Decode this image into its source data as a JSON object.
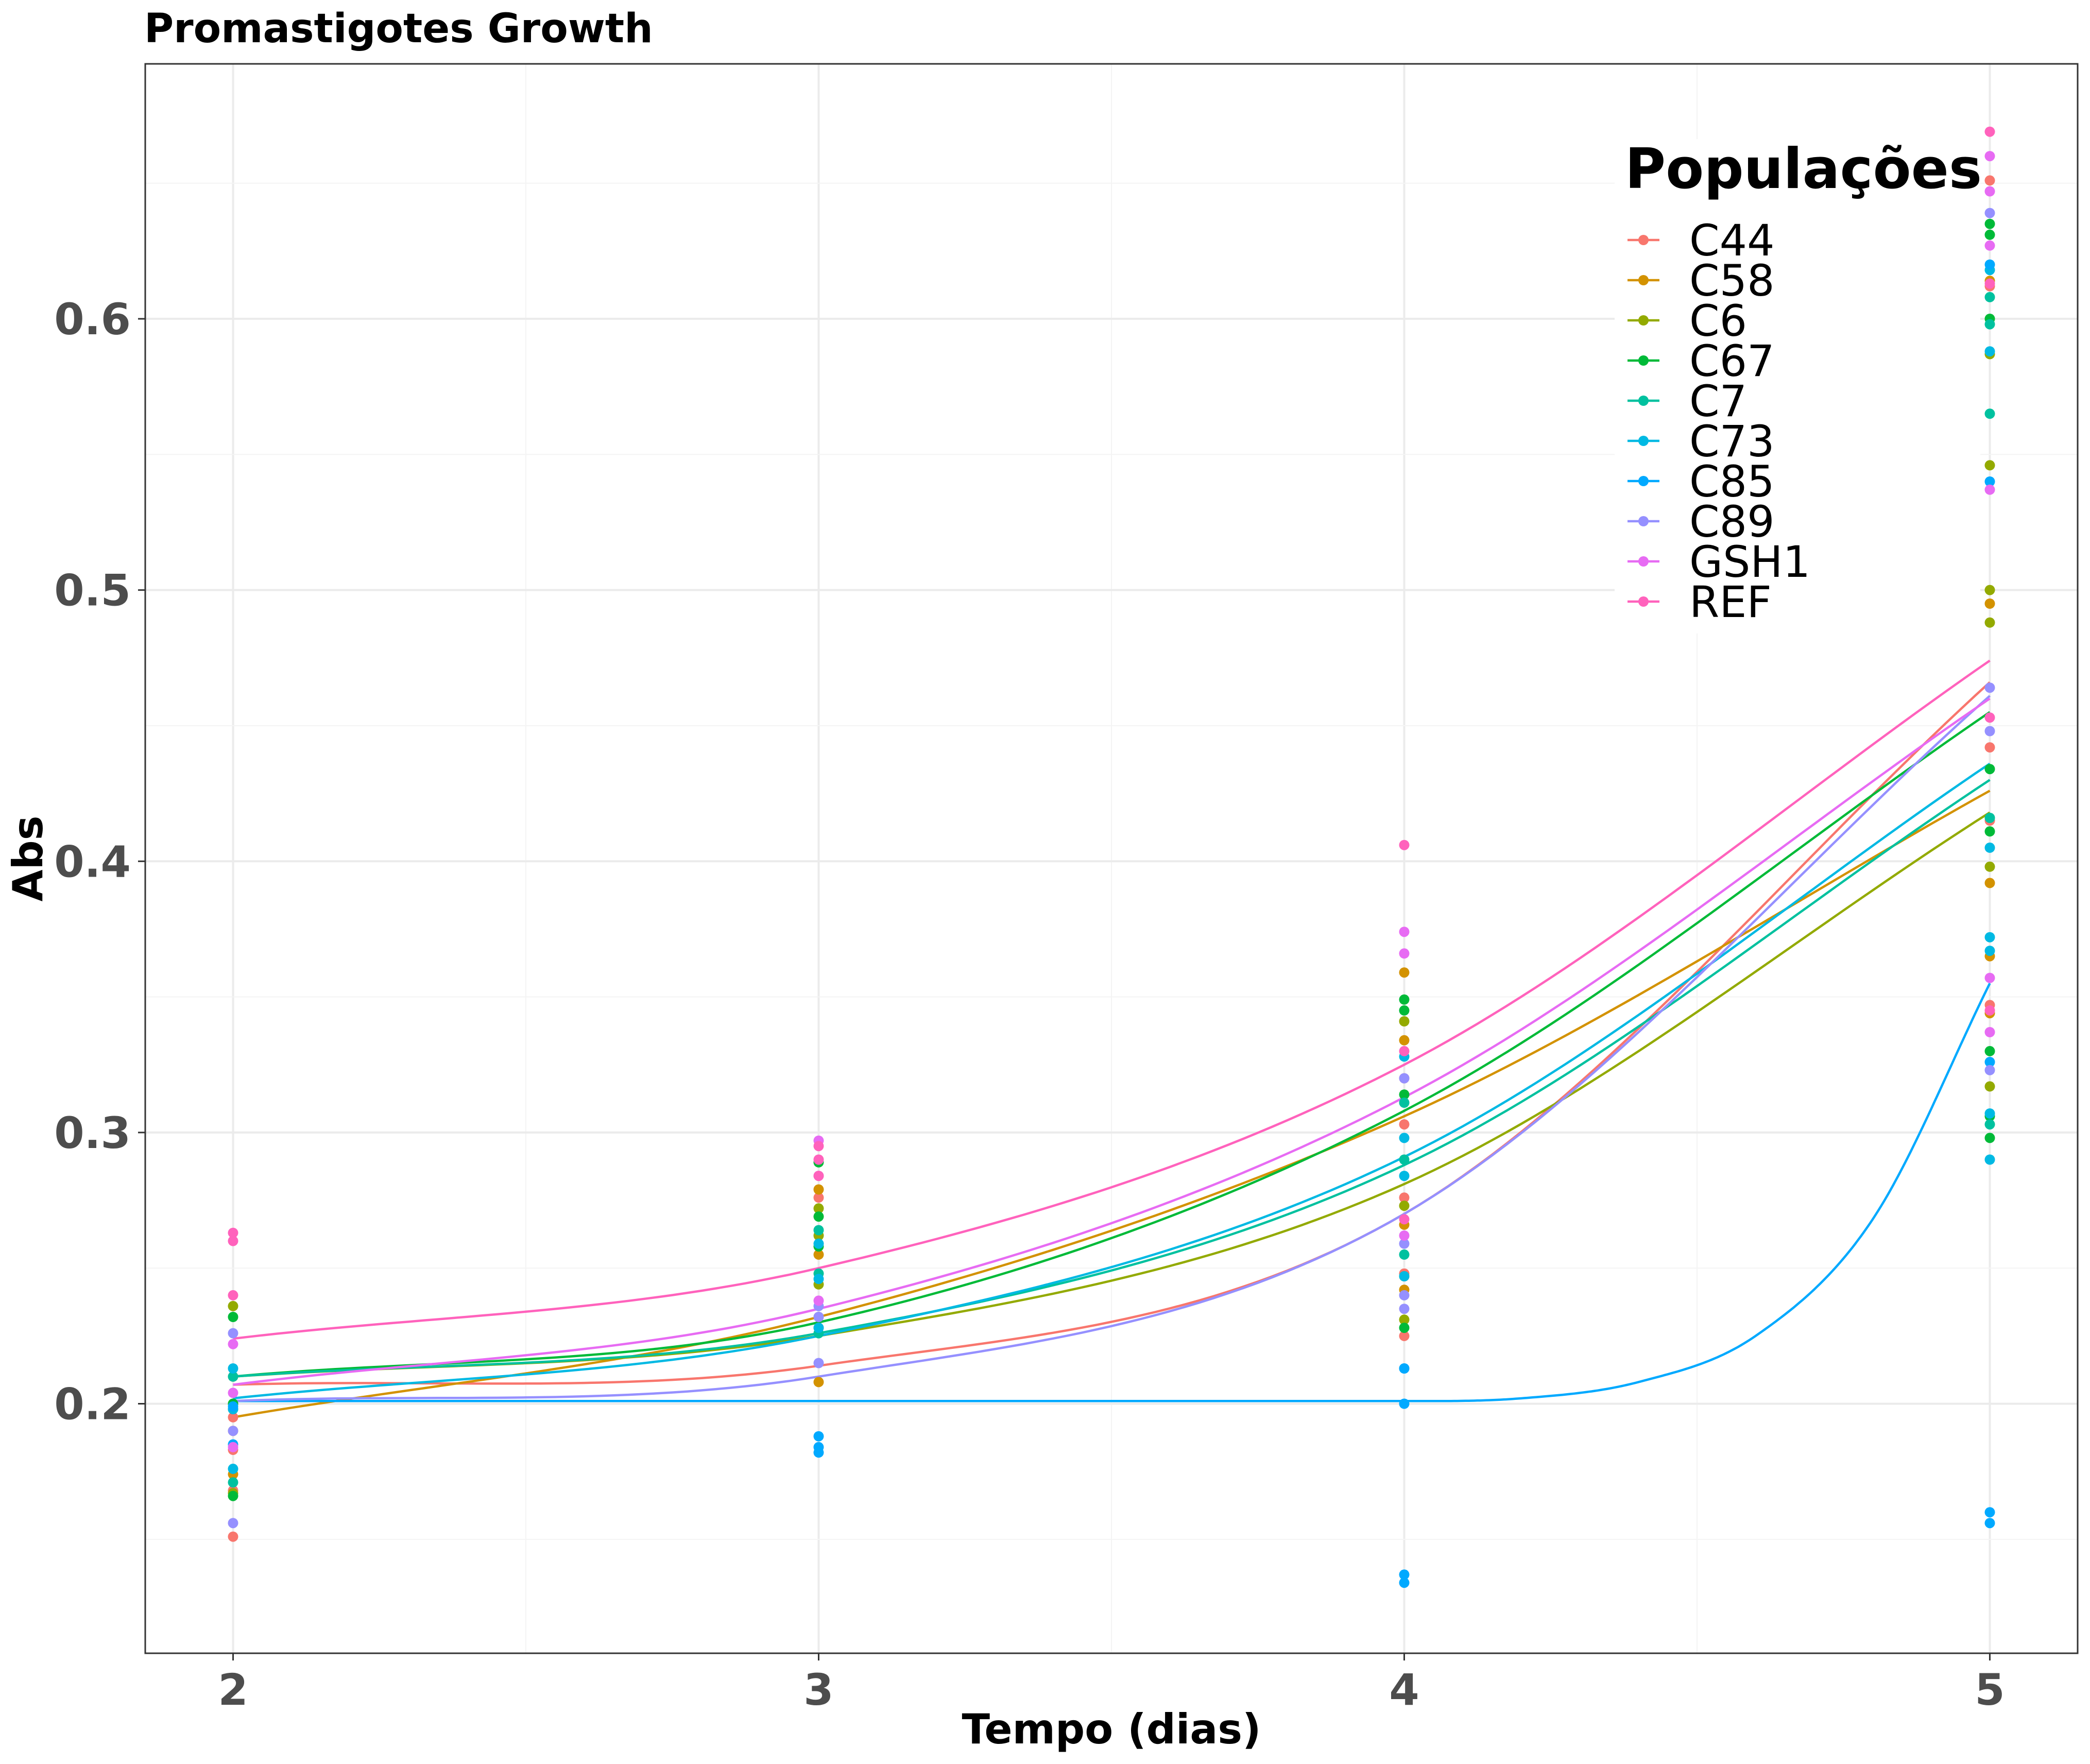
{
  "chart_data": {
    "type": "scatter",
    "title": "Promastigotes Growth",
    "xlabel": "Tempo (dias)",
    "ylabel": "Abs",
    "x_ticks": [
      2,
      3,
      4,
      5
    ],
    "y_ticks": [
      0.2,
      0.3,
      0.4,
      0.5,
      0.6
    ],
    "y_tick_labels": [
      "0.2",
      "0.3",
      "0.4",
      "0.5",
      "0.6"
    ],
    "xlim": [
      1.85,
      5.15
    ],
    "ylim": [
      0.108,
      0.694
    ],
    "grid": true,
    "legend": {
      "title": "Populações",
      "position": "top-right"
    },
    "series": [
      {
        "name": "C44",
        "color": "#F8766D",
        "curve": [
          [
            2,
            0.207
          ],
          [
            3,
            0.214
          ],
          [
            4,
            0.27
          ],
          [
            5,
            0.466
          ]
        ],
        "points": [
          [
            2,
            0.151
          ],
          [
            2,
            0.168
          ],
          [
            2,
            0.183
          ],
          [
            2,
            0.195
          ],
          [
            2,
            0.21
          ],
          [
            3,
            0.228
          ],
          [
            3,
            0.232
          ],
          [
            3,
            0.276
          ],
          [
            4,
            0.225
          ],
          [
            4,
            0.248
          ],
          [
            4,
            0.276
          ],
          [
            4,
            0.303
          ],
          [
            4,
            0.32
          ],
          [
            5,
            0.347
          ],
          [
            5,
            0.415
          ],
          [
            5,
            0.442
          ],
          [
            5,
            0.612
          ],
          [
            5,
            0.651
          ]
        ]
      },
      {
        "name": "C58",
        "color": "#D39200",
        "curve": [
          [
            2,
            0.195
          ],
          [
            3,
            0.232
          ],
          [
            4,
            0.306
          ],
          [
            5,
            0.426
          ]
        ],
        "points": [
          [
            2,
            0.174
          ],
          [
            2,
            0.19
          ],
          [
            2,
            0.2
          ],
          [
            3,
            0.208
          ],
          [
            3,
            0.255
          ],
          [
            3,
            0.279
          ],
          [
            4,
            0.242
          ],
          [
            4,
            0.266
          ],
          [
            4,
            0.334
          ],
          [
            4,
            0.359
          ],
          [
            5,
            0.344
          ],
          [
            5,
            0.365
          ],
          [
            5,
            0.392
          ],
          [
            5,
            0.495
          ],
          [
            5,
            0.614
          ]
        ]
      },
      {
        "name": "C6",
        "color": "#93AA00",
        "curve": [
          [
            2,
            0.21
          ],
          [
            3,
            0.225
          ],
          [
            4,
            0.281
          ],
          [
            5,
            0.418
          ]
        ],
        "points": [
          [
            2,
            0.167
          ],
          [
            2,
            0.198
          ],
          [
            2,
            0.236
          ],
          [
            3,
            0.244
          ],
          [
            3,
            0.262
          ],
          [
            3,
            0.272
          ],
          [
            4,
            0.231
          ],
          [
            4,
            0.247
          ],
          [
            4,
            0.273
          ],
          [
            4,
            0.341
          ],
          [
            5,
            0.317
          ],
          [
            5,
            0.398
          ],
          [
            5,
            0.488
          ],
          [
            5,
            0.5
          ],
          [
            5,
            0.546
          ],
          [
            5,
            0.587
          ]
        ]
      },
      {
        "name": "C67",
        "color": "#00BA38",
        "curve": [
          [
            2,
            0.21
          ],
          [
            3,
            0.23
          ],
          [
            4,
            0.308
          ],
          [
            5,
            0.455
          ]
        ],
        "points": [
          [
            2,
            0.166
          ],
          [
            2,
            0.2
          ],
          [
            2,
            0.232
          ],
          [
            3,
            0.258
          ],
          [
            3,
            0.269
          ],
          [
            3,
            0.289
          ],
          [
            4,
            0.228
          ],
          [
            4,
            0.314
          ],
          [
            4,
            0.345
          ],
          [
            4,
            0.349
          ],
          [
            5,
            0.298
          ],
          [
            5,
            0.306
          ],
          [
            5,
            0.33
          ],
          [
            5,
            0.411
          ],
          [
            5,
            0.434
          ],
          [
            5,
            0.6
          ],
          [
            5,
            0.631
          ],
          [
            5,
            0.635
          ]
        ]
      },
      {
        "name": "C7",
        "color": "#00C19F",
        "curve": [
          [
            2,
            0.21
          ],
          [
            3,
            0.226
          ],
          [
            4,
            0.288
          ],
          [
            5,
            0.43
          ]
        ],
        "points": [
          [
            2,
            0.171
          ],
          [
            2,
            0.198
          ],
          [
            2,
            0.21
          ],
          [
            3,
            0.226
          ],
          [
            3,
            0.248
          ],
          [
            3,
            0.264
          ],
          [
            4,
            0.255
          ],
          [
            4,
            0.29
          ],
          [
            4,
            0.311
          ],
          [
            5,
            0.303
          ],
          [
            5,
            0.416
          ],
          [
            5,
            0.565
          ],
          [
            5,
            0.598
          ],
          [
            5,
            0.608
          ]
        ]
      },
      {
        "name": "C73",
        "color": "#00B9E3",
        "curve": [
          [
            2,
            0.202
          ],
          [
            3,
            0.225
          ],
          [
            4,
            0.291
          ],
          [
            5,
            0.436
          ]
        ],
        "points": [
          [
            2,
            0.176
          ],
          [
            2,
            0.198
          ],
          [
            2,
            0.213
          ],
          [
            3,
            0.228
          ],
          [
            3,
            0.246
          ],
          [
            3,
            0.259
          ],
          [
            4,
            0.247
          ],
          [
            4,
            0.284
          ],
          [
            4,
            0.298
          ],
          [
            4,
            0.328
          ],
          [
            5,
            0.29
          ],
          [
            5,
            0.307
          ],
          [
            5,
            0.367
          ],
          [
            5,
            0.372
          ],
          [
            5,
            0.405
          ],
          [
            5,
            0.588
          ],
          [
            5,
            0.618
          ]
        ]
      },
      {
        "name": "C85",
        "color": "#00A9FF",
        "curve": [
          [
            2,
            0.201
          ],
          [
            3,
            0.201
          ],
          [
            4,
            0.201
          ],
          [
            4.2,
            0.202
          ],
          [
            4.4,
            0.208
          ],
          [
            4.6,
            0.225
          ],
          [
            4.8,
            0.268
          ],
          [
            5,
            0.355
          ]
        ],
        "points": [
          [
            2,
            0.185
          ],
          [
            2,
            0.199
          ],
          [
            3,
            0.182
          ],
          [
            3,
            0.184
          ],
          [
            3,
            0.188
          ],
          [
            4,
            0.134
          ],
          [
            4,
            0.137
          ],
          [
            4,
            0.2
          ],
          [
            4,
            0.213
          ],
          [
            4,
            0.213
          ],
          [
            5,
            0.156
          ],
          [
            5,
            0.16
          ],
          [
            5,
            0.326
          ],
          [
            5,
            0.54
          ],
          [
            5,
            0.62
          ]
        ]
      },
      {
        "name": "C89",
        "color": "#9590FF",
        "curve": [
          [
            2,
            0.201
          ],
          [
            3,
            0.21
          ],
          [
            4,
            0.27
          ],
          [
            5,
            0.461
          ]
        ],
        "points": [
          [
            2,
            0.156
          ],
          [
            2,
            0.19
          ],
          [
            2,
            0.226
          ],
          [
            3,
            0.215
          ],
          [
            3,
            0.232
          ],
          [
            3,
            0.236
          ],
          [
            4,
            0.235
          ],
          [
            4,
            0.24
          ],
          [
            4,
            0.259
          ],
          [
            4,
            0.32
          ],
          [
            5,
            0.323
          ],
          [
            5,
            0.448
          ],
          [
            5,
            0.464
          ],
          [
            5,
            0.639
          ]
        ]
      },
      {
        "name": "GSH1",
        "color": "#E76BF3",
        "curve": [
          [
            2,
            0.207
          ],
          [
            3,
            0.235
          ],
          [
            4,
            0.313
          ],
          [
            5,
            0.46
          ]
        ],
        "points": [
          [
            2,
            0.184
          ],
          [
            2,
            0.204
          ],
          [
            2,
            0.222
          ],
          [
            3,
            0.238
          ],
          [
            3,
            0.284
          ],
          [
            3,
            0.297
          ],
          [
            4,
            0.262
          ],
          [
            4,
            0.366
          ],
          [
            4,
            0.374
          ],
          [
            5,
            0.337
          ],
          [
            5,
            0.357
          ],
          [
            5,
            0.537
          ],
          [
            5,
            0.627
          ],
          [
            5,
            0.647
          ],
          [
            5,
            0.66
          ]
        ]
      },
      {
        "name": "REF",
        "color": "#FF62BC",
        "curve": [
          [
            2,
            0.224
          ],
          [
            3,
            0.25
          ],
          [
            4,
            0.325
          ],
          [
            5,
            0.474
          ]
        ],
        "points": [
          [
            2,
            0.24
          ],
          [
            2,
            0.26
          ],
          [
            2,
            0.263
          ],
          [
            3,
            0.284
          ],
          [
            3,
            0.29
          ],
          [
            3,
            0.295
          ],
          [
            4,
            0.268
          ],
          [
            4,
            0.33
          ],
          [
            4,
            0.406
          ],
          [
            5,
            0.345
          ],
          [
            5,
            0.453
          ],
          [
            5,
            0.613
          ],
          [
            5,
            0.669
          ]
        ]
      }
    ]
  }
}
